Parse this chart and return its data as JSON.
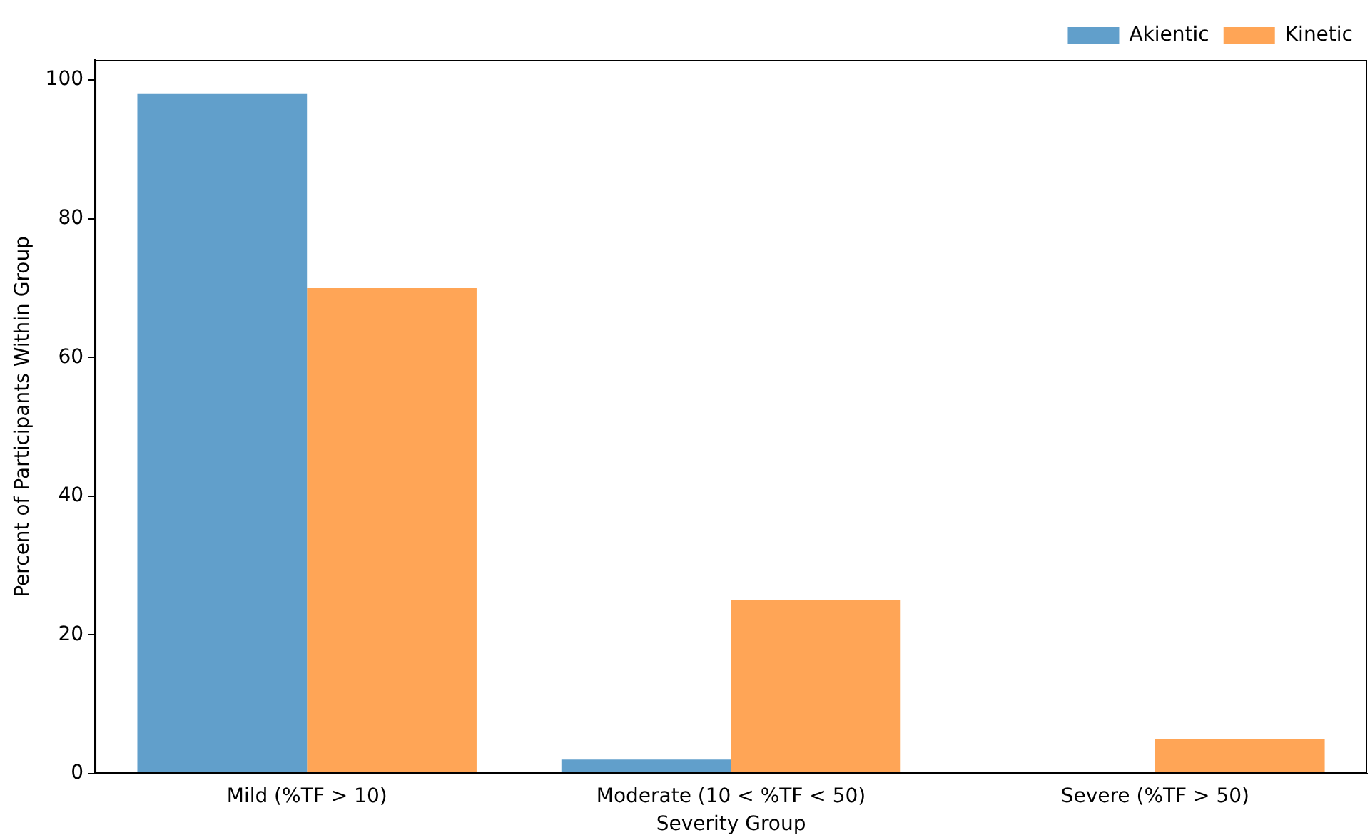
{
  "chart_data": {
    "type": "bar",
    "xlabel": "Severity Group",
    "ylabel": "Percent of Participants Within Group",
    "categories": [
      "Mild (%TF > 10)",
      "Moderate (10 < %TF < 50)",
      "Severe (%TF > 50)"
    ],
    "series": [
      {
        "name": "Akientic",
        "color": "#619fcb",
        "values": [
          98,
          2,
          0
        ]
      },
      {
        "name": "Kinetic",
        "color": "#ffa556",
        "values": [
          70,
          25,
          5
        ]
      }
    ],
    "ylim": [
      0,
      102.9
    ],
    "yticks": [
      0,
      20,
      40,
      60,
      80,
      100
    ],
    "grid": false,
    "legend": "top right"
  }
}
